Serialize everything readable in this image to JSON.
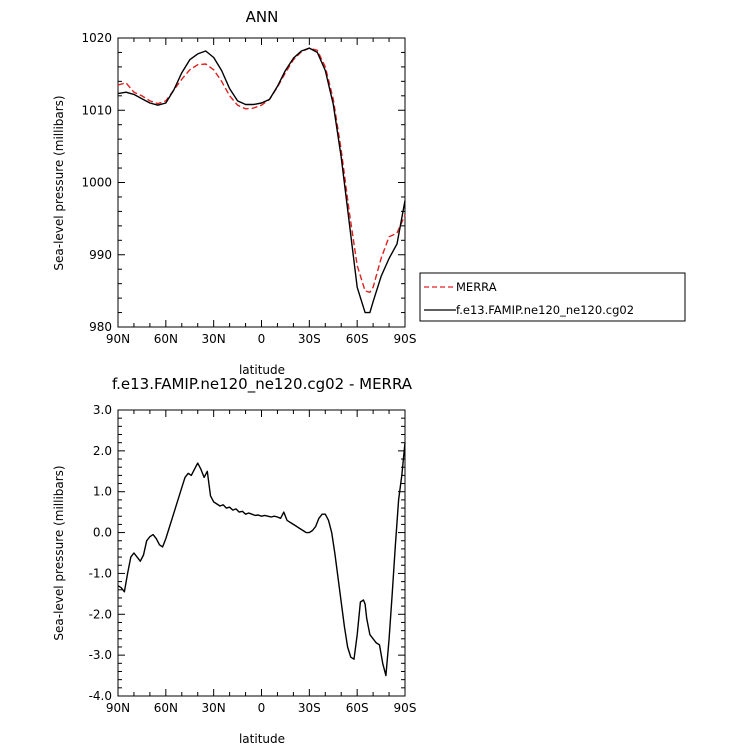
{
  "chart_data": [
    {
      "type": "line",
      "title": "ANN",
      "xlabel": "latitude",
      "ylabel": "Sea-level pressure (millibars)",
      "xlim": [
        90,
        -90
      ],
      "ylim": [
        980,
        1020
      ],
      "x_tick_labels": [
        "90N",
        "60N",
        "30N",
        "0",
        "30S",
        "60S",
        "90S"
      ],
      "x_tick_values": [
        90,
        60,
        30,
        0,
        -30,
        -60,
        -90
      ],
      "y_ticks": [
        980,
        990,
        1000,
        1010,
        1020
      ],
      "legend": "right",
      "series": [
        {
          "name": "MERRA",
          "color": "#e02020",
          "dash": "dashed",
          "x": [
            90,
            85,
            80,
            75,
            70,
            65,
            60,
            55,
            50,
            45,
            40,
            35,
            30,
            25,
            20,
            15,
            10,
            5,
            0,
            -5,
            -10,
            -15,
            -20,
            -25,
            -30,
            -35,
            -40,
            -45,
            -50,
            -55,
            -60,
            -65,
            -68,
            -70,
            -75,
            -80,
            -85,
            -90
          ],
          "y": [
            1013.5,
            1013.8,
            1012.5,
            1012.0,
            1011.3,
            1010.9,
            1011.3,
            1012.8,
            1014.3,
            1015.6,
            1016.3,
            1016.4,
            1015.6,
            1014.0,
            1012.0,
            1010.7,
            1010.2,
            1010.3,
            1010.7,
            1011.5,
            1013.2,
            1015.2,
            1017.0,
            1018.1,
            1018.6,
            1018.3,
            1016.0,
            1011.5,
            1004.5,
            996.0,
            988.5,
            985.0,
            984.8,
            985.5,
            989.5,
            992.5,
            993.0,
            995.5
          ]
        },
        {
          "name": "f.e13.FAMIP.ne120_ne120.cg02",
          "color": "#000000",
          "dash": "solid",
          "x": [
            90,
            85,
            80,
            75,
            70,
            65,
            60,
            55,
            50,
            45,
            40,
            35,
            30,
            25,
            20,
            15,
            10,
            5,
            0,
            -5,
            -10,
            -15,
            -20,
            -25,
            -30,
            -35,
            -40,
            -45,
            -50,
            -55,
            -60,
            -65,
            -68,
            -70,
            -75,
            -80,
            -85,
            -90
          ],
          "y": [
            1012.3,
            1012.5,
            1012.2,
            1011.6,
            1011.0,
            1010.7,
            1011.0,
            1012.8,
            1015.2,
            1017.0,
            1017.8,
            1018.2,
            1017.3,
            1015.5,
            1013.0,
            1011.3,
            1010.8,
            1010.8,
            1011.0,
            1011.5,
            1013.3,
            1015.5,
            1017.2,
            1018.2,
            1018.6,
            1018.0,
            1015.5,
            1010.8,
            1003.5,
            994.5,
            985.5,
            982.0,
            982.0,
            983.5,
            987.0,
            989.5,
            991.5,
            997.5
          ]
        }
      ]
    },
    {
      "type": "line",
      "title": "f.e13.FAMIP.ne120_ne120.cg02 - MERRA",
      "xlabel": "latitude",
      "ylabel": "Sea-level pressure (millibars)",
      "xlim": [
        90,
        -90
      ],
      "ylim": [
        -4.0,
        3.0
      ],
      "x_tick_labels": [
        "90N",
        "60N",
        "30N",
        "0",
        "30S",
        "60S",
        "90S"
      ],
      "x_tick_values": [
        90,
        60,
        30,
        0,
        -30,
        -60,
        -90
      ],
      "y_tick_labels": [
        "-4.0",
        "-3.0",
        "-2.0",
        "-1.0",
        "0.0",
        "1.0",
        "2.0",
        "3.0"
      ],
      "y_ticks": [
        -4,
        -3,
        -2,
        -1,
        0,
        1,
        2,
        3
      ],
      "series": [
        {
          "color": "#000000",
          "x": [
            90,
            88,
            86,
            84,
            82,
            80,
            78,
            76,
            74,
            72,
            70,
            68,
            66,
            64,
            62,
            60,
            58,
            56,
            54,
            52,
            50,
            48,
            46,
            44,
            42,
            40,
            38,
            36,
            34,
            32,
            30,
            28,
            26,
            24,
            22,
            20,
            18,
            16,
            14,
            12,
            10,
            8,
            6,
            4,
            2,
            0,
            -2,
            -4,
            -6,
            -8,
            -10,
            -12,
            -14,
            -16,
            -18,
            -20,
            -22,
            -24,
            -26,
            -28,
            -30,
            -32,
            -34,
            -36,
            -38,
            -40,
            -42,
            -44,
            -46,
            -48,
            -50,
            -52,
            -54,
            -56,
            -58,
            -60,
            -62,
            -64,
            -65,
            -66,
            -68,
            -70,
            -72,
            -74,
            -76,
            -78,
            -80,
            -82,
            -84,
            -86,
            -88,
            -90
          ],
          "y": [
            -1.3,
            -1.35,
            -1.45,
            -1.0,
            -0.6,
            -0.5,
            -0.6,
            -0.7,
            -0.55,
            -0.2,
            -0.1,
            -0.05,
            -0.15,
            -0.3,
            -0.35,
            -0.15,
            0.1,
            0.35,
            0.6,
            0.85,
            1.1,
            1.35,
            1.45,
            1.4,
            1.55,
            1.7,
            1.55,
            1.35,
            1.5,
            0.9,
            0.75,
            0.7,
            0.65,
            0.68,
            0.6,
            0.62,
            0.55,
            0.58,
            0.5,
            0.52,
            0.45,
            0.48,
            0.45,
            0.42,
            0.43,
            0.4,
            0.42,
            0.4,
            0.38,
            0.4,
            0.38,
            0.35,
            0.5,
            0.3,
            0.25,
            0.2,
            0.15,
            0.1,
            0.05,
            0.0,
            0.0,
            0.05,
            0.15,
            0.35,
            0.45,
            0.45,
            0.3,
            0.0,
            -0.5,
            -1.1,
            -1.7,
            -2.3,
            -2.8,
            -3.05,
            -3.1,
            -2.5,
            -1.7,
            -1.65,
            -1.75,
            -2.1,
            -2.5,
            -2.6,
            -2.7,
            -2.75,
            -3.2,
            -3.5,
            -2.6,
            -1.5,
            -0.3,
            0.8,
            1.4,
            2.2
          ]
        }
      ]
    }
  ]
}
